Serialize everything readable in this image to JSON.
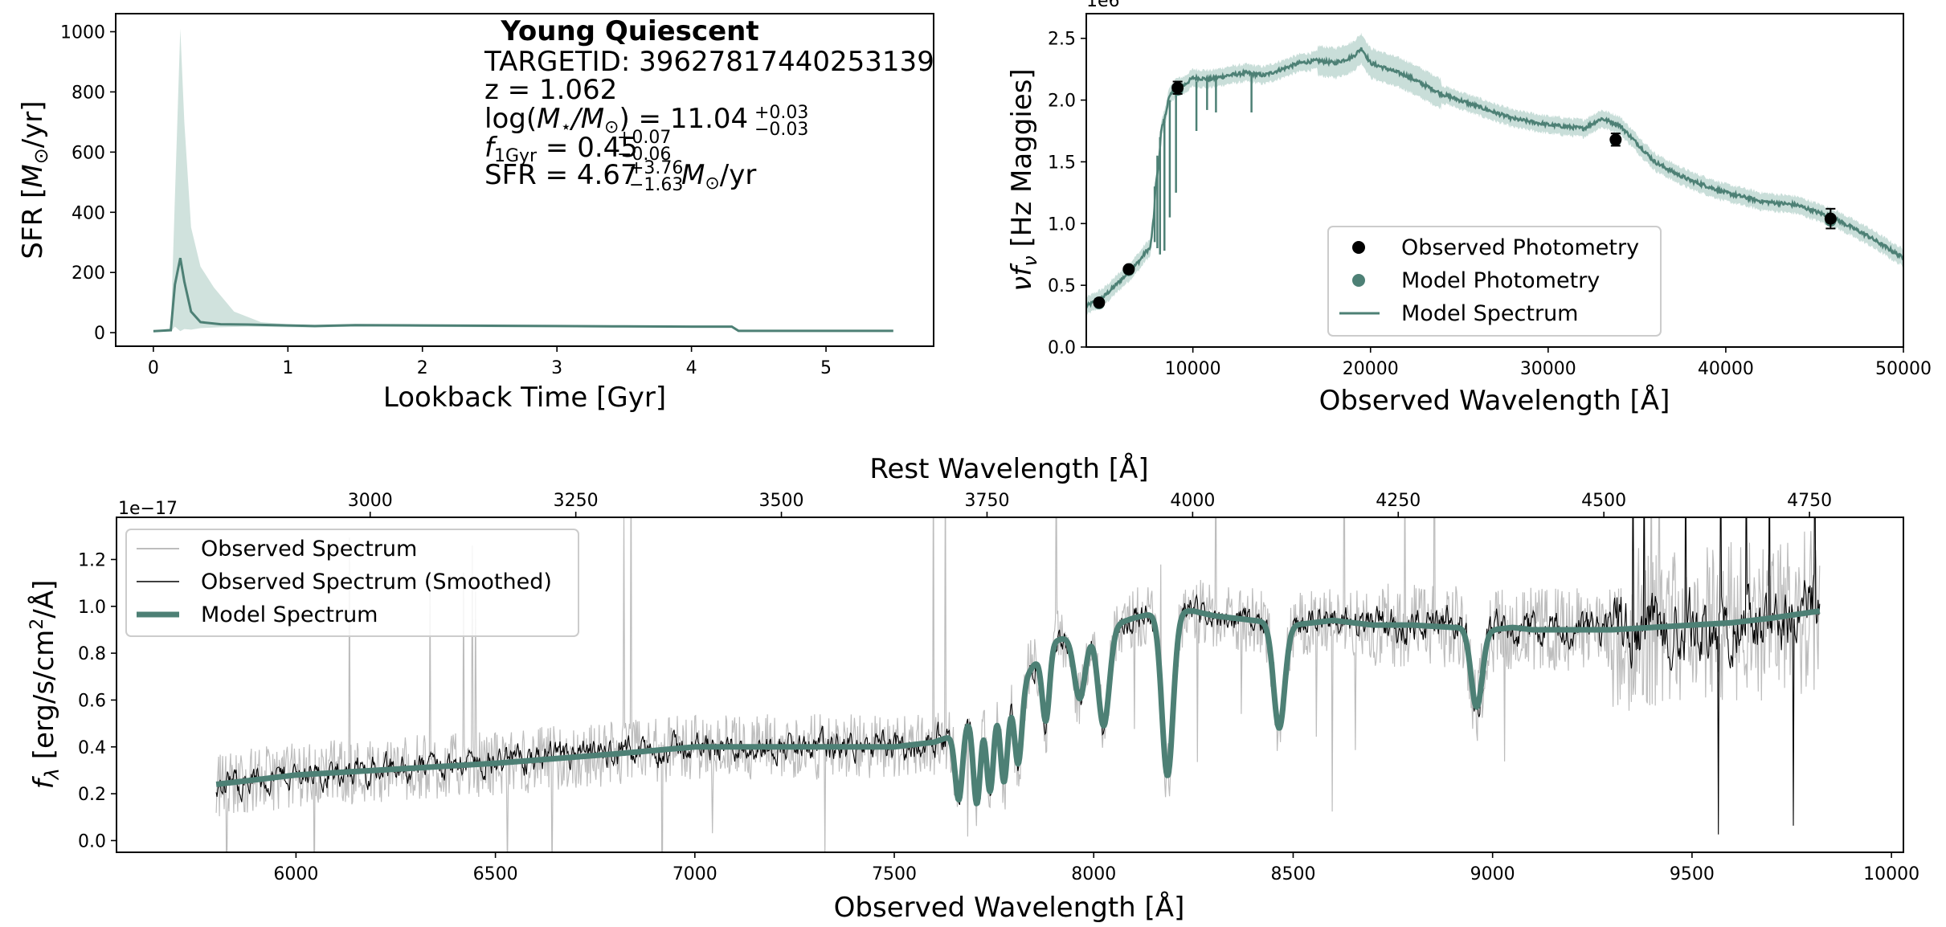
{
  "colors": {
    "model": "#4d8075",
    "model_band": "#bcd6cf",
    "observed_raw": "#bdbdbd",
    "observed_smooth": "#000000",
    "photometry": "#000000",
    "axes": "#000000"
  },
  "panel_sfh": {
    "title": "Young Quiescent",
    "info_lines": {
      "targetid": "TARGETID: 39627817440253139",
      "z": "z = 1.062",
      "mass_prefix": "log(",
      "mass_mid": "M",
      "mass_sub1": "⋆",
      "mass_slash": "/M",
      "mass_sub2": "⊙",
      "mass_eq": ") = 11.04",
      "mass_up": "+0.03",
      "mass_dn": "−0.03",
      "f_sym": "f",
      "f_sub": "1Gyr",
      "f_eq": " = 0.45",
      "f_up": "+0.07",
      "f_dn": "−0.06",
      "sfr_eq": "SFR = 4.67",
      "sfr_up": "+3.76",
      "sfr_dn": "−1.63",
      "sfr_unit_m": " M",
      "sfr_unit_sub": "⊙",
      "sfr_unit_tail": "/yr"
    },
    "xlabel": "Lookback Time [Gyr]",
    "ylabel_a": "SFR [",
    "ylabel_m": "M",
    "ylabel_sub": "⊙",
    "ylabel_b": "/yr]"
  },
  "panel_sed": {
    "xlabel": "Observed Wavelength [Å]",
    "ylabel_a": "ν",
    "ylabel_f": "f",
    "ylabel_sub": "ν",
    "ylabel_b": " [Hz Maggies]",
    "offset_text": "1e6",
    "legend": {
      "obs_phot": "Observed Photometry",
      "model_phot": "Model Photometry",
      "model_spec": "Model Spectrum"
    }
  },
  "panel_spec": {
    "xlabel": "Observed Wavelength [Å]",
    "top_label": "Rest Wavelength [Å]",
    "ylabel_f": "f",
    "ylabel_sub": "λ",
    "ylabel_b": " [erg/s/cm",
    "ylabel_sup": "2",
    "ylabel_c": "/Å]",
    "offset_text": "1e−17",
    "legend": {
      "obs": "Observed Spectrum",
      "obs_smooth": "Observed Spectrum (Smoothed)",
      "model": "Model Spectrum"
    }
  },
  "chart_data": [
    {
      "type": "line",
      "name": "star formation history",
      "x_axis": {
        "range": [
          -0.28,
          5.8
        ],
        "ticks": [
          0,
          1,
          2,
          3,
          4,
          5
        ]
      },
      "y_axis": {
        "range": [
          -45,
          1060
        ],
        "ticks": [
          0,
          200,
          400,
          600,
          800,
          1000
        ]
      },
      "series": [
        {
          "name": "median",
          "x": [
            0.0,
            0.13,
            0.16,
            0.2,
            0.23,
            0.28,
            0.35,
            0.5,
            0.7,
            1.0,
            1.2,
            1.5,
            2.0,
            2.5,
            3.0,
            3.5,
            4.0,
            4.3,
            4.35,
            4.6,
            5.0,
            5.5
          ],
          "y": [
            5,
            8,
            160,
            248,
            170,
            70,
            35,
            28,
            27,
            24,
            22,
            25,
            24,
            23,
            22,
            21,
            20,
            20,
            6,
            6,
            6,
            6
          ]
        },
        {
          "name": "range_upper",
          "x": [
            0.0,
            0.13,
            0.16,
            0.2,
            0.23,
            0.28,
            0.35,
            0.45,
            0.6,
            0.8,
            1.0,
            1.2,
            1.5,
            2.0,
            2.5,
            3.0,
            3.5,
            4.0,
            4.3,
            4.35,
            4.6,
            5.0,
            5.5
          ],
          "y": [
            6,
            15,
            450,
            1010,
            700,
            350,
            220,
            150,
            70,
            35,
            28,
            25,
            28,
            27,
            26,
            25,
            24,
            23,
            23,
            8,
            8,
            8,
            8
          ]
        },
        {
          "name": "range_lower",
          "x": [
            0.0,
            0.13,
            0.16,
            0.2,
            0.23,
            0.28,
            0.35,
            0.5,
            0.7,
            1.0,
            1.2,
            1.5,
            2.0,
            2.5,
            3.0,
            3.5,
            4.0,
            4.3,
            4.35,
            4.6,
            5.0,
            5.5
          ],
          "y": [
            3,
            4,
            20,
            5,
            12,
            10,
            15,
            18,
            20,
            18,
            17,
            20,
            19,
            18,
            18,
            17,
            16,
            16,
            4,
            4,
            4,
            4
          ]
        }
      ]
    },
    {
      "type": "line",
      "name": "photometry and model SED",
      "x_axis": {
        "range": [
          4000,
          50000
        ],
        "ticks": [
          10000,
          20000,
          30000,
          40000,
          50000
        ]
      },
      "y_axis": {
        "range": [
          0,
          2.7
        ],
        "ticks": [
          0.0,
          0.5,
          1.0,
          1.5,
          2.0,
          2.5
        ],
        "multiplier": 1000000
      },
      "series": [
        {
          "name": "Model Spectrum",
          "x": [
            4000,
            4500,
            5000,
            5500,
            6000,
            6500,
            7000,
            7400,
            7600,
            7800,
            7900,
            8100,
            8200,
            8400,
            8500,
            8600,
            8800,
            9000,
            9500,
            10000,
            11000,
            12000,
            13000,
            14000,
            15000,
            16000,
            17000,
            18000,
            19000,
            19500,
            20000,
            21000,
            22000,
            24000,
            26000,
            28000,
            30000,
            32000,
            33000,
            34000,
            35000,
            36000,
            37000,
            38000,
            40000,
            42000,
            44000,
            46000,
            48000,
            50000
          ],
          "y": [
            0.33,
            0.37,
            0.41,
            0.48,
            0.55,
            0.62,
            0.7,
            0.78,
            0.8,
            1.05,
            1.3,
            1.5,
            1.75,
            1.85,
            1.9,
            2.0,
            2.05,
            2.1,
            2.12,
            2.18,
            2.17,
            2.2,
            2.22,
            2.2,
            2.25,
            2.3,
            2.32,
            2.3,
            2.35,
            2.42,
            2.3,
            2.25,
            2.2,
            2.05,
            1.95,
            1.85,
            1.8,
            1.77,
            1.85,
            1.8,
            1.65,
            1.5,
            1.42,
            1.35,
            1.25,
            1.18,
            1.15,
            1.05,
            0.9,
            0.72
          ]
        },
        {
          "name": "Observed Photometry",
          "x": [
            4720,
            6390,
            9140,
            33800,
            45900
          ],
          "y": [
            0.36,
            0.63,
            2.1,
            1.68,
            1.04
          ],
          "yerr": [
            0.02,
            0.02,
            0.05,
            0.05,
            0.08
          ]
        },
        {
          "name": "Model Photometry",
          "x": [
            4720,
            6390,
            9140,
            33800,
            45900
          ],
          "y": [
            0.35,
            0.62,
            2.08,
            1.67,
            1.02
          ]
        }
      ]
    },
    {
      "type": "line",
      "name": "observed and model spectrum",
      "x_axis": {
        "range": [
          5550,
          10030
        ],
        "ticks": [
          6000,
          6500,
          7000,
          7500,
          8000,
          8500,
          9000,
          9500,
          10000
        ]
      },
      "top_axis": {
        "ticks": [
          3000,
          3250,
          3500,
          3750,
          4000,
          4250,
          4500,
          4750
        ],
        "z": 1.062
      },
      "y_axis": {
        "range": [
          -0.05,
          1.38
        ],
        "ticks": [
          0.0,
          0.2,
          0.4,
          0.6,
          0.8,
          1.0,
          1.2
        ],
        "multiplier": 1e-17
      },
      "series": [
        {
          "name": "Model Spectrum",
          "x": [
            5800,
            6000,
            6200,
            6500,
            6800,
            7000,
            7300,
            7500,
            7600,
            7650,
            7700,
            7750,
            7800,
            7850,
            7900,
            7950,
            8000,
            8050,
            8100,
            8150,
            8200,
            8250,
            8300,
            8350,
            8400,
            8450,
            8480,
            8500,
            8550,
            8600,
            8700,
            8800,
            8900,
            8960,
            9000,
            9050,
            9100,
            9200,
            9300,
            9400,
            9500,
            9600,
            9700,
            9820
          ],
          "y": [
            0.24,
            0.28,
            0.3,
            0.33,
            0.37,
            0.4,
            0.4,
            0.4,
            0.42,
            0.45,
            0.55,
            0.6,
            0.62,
            0.75,
            0.85,
            0.88,
            0.9,
            0.92,
            0.95,
            0.97,
            0.98,
            0.98,
            0.96,
            0.95,
            0.94,
            0.93,
            0.93,
            0.92,
            0.93,
            0.94,
            0.92,
            0.92,
            0.91,
            0.91,
            0.9,
            0.91,
            0.9,
            0.9,
            0.9,
            0.91,
            0.92,
            0.93,
            0.95,
            0.98
          ]
        },
        {
          "name": "Model Spectrum absorption lines",
          "centers": [
            7662,
            7707,
            7740,
            7775,
            7811,
            7880,
            7965,
            8025,
            8185,
            8465,
            8960
          ],
          "depths": [
            0.3,
            0.4,
            0.38,
            0.36,
            0.32,
            0.3,
            0.28,
            0.42,
            0.7,
            0.45,
            0.34
          ]
        }
      ]
    }
  ]
}
